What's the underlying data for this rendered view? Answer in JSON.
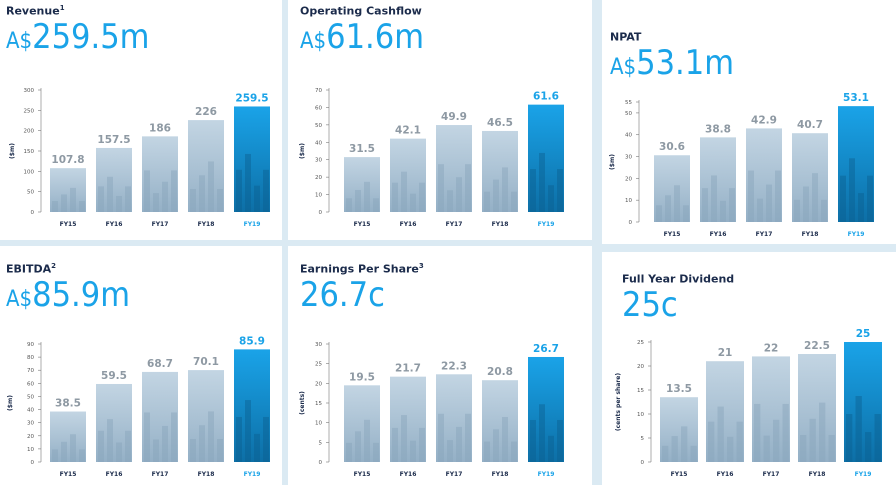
{
  "colors": {
    "accent": "#1aa3e8",
    "bar": "#a9c2d6",
    "bar_dark": "#8eaac1",
    "text_dark": "#1b2b4b",
    "value": "#8e99a3"
  },
  "panels": [
    {
      "id": "revenue",
      "title": "Revenue",
      "sup": "1",
      "prefix": "A$",
      "big": "259.5m"
    },
    {
      "id": "opcash",
      "title": "Operating Cashflow",
      "sup": "",
      "prefix": "A$",
      "big": "61.6m"
    },
    {
      "id": "npat",
      "title": "NPAT",
      "sup": "",
      "prefix": "A$",
      "big": "53.1m"
    },
    {
      "id": "ebitda",
      "title": "EBITDA",
      "sup": "2",
      "prefix": "A$",
      "big": "85.9m"
    },
    {
      "id": "eps",
      "title": "Earnings Per Share",
      "sup": "3",
      "prefix": "",
      "big": "26.7c"
    },
    {
      "id": "dividend",
      "title": "Full Year Dividend",
      "sup": "",
      "prefix": "",
      "big": "25c"
    }
  ],
  "chart_data": [
    {
      "type": "bar",
      "title": "Revenue",
      "ylabel": "($m)",
      "categories": [
        "FY15",
        "FY16",
        "FY17",
        "FY18",
        "FY19"
      ],
      "values": [
        107.8,
        157.5,
        186,
        226,
        259.5
      ],
      "labels": [
        "107.8",
        "157.5",
        "186",
        "226",
        "259.5"
      ],
      "ylim": [
        0,
        300
      ],
      "yticks": [
        "0",
        "50",
        "100",
        "150",
        "200",
        "250",
        "300"
      ]
    },
    {
      "type": "bar",
      "title": "Operating Cashflow",
      "ylabel": "($m)",
      "categories": [
        "FY15",
        "FY16",
        "FY17",
        "FY18",
        "FY19"
      ],
      "values": [
        31.5,
        42.1,
        49.9,
        46.5,
        61.6
      ],
      "labels": [
        "31.5",
        "42.1",
        "49.9",
        "46.5",
        "61.6"
      ],
      "ylim": [
        0,
        70
      ],
      "yticks": [
        "0",
        "10",
        "20",
        "30",
        "40",
        "50",
        "60",
        "70"
      ]
    },
    {
      "type": "bar",
      "title": "NPAT",
      "ylabel": "($m)",
      "categories": [
        "FY15",
        "FY16",
        "FY17",
        "FY18",
        "FY19"
      ],
      "values": [
        30.6,
        38.8,
        42.9,
        40.7,
        53.1
      ],
      "labels": [
        "30.6",
        "38.8",
        "42.9",
        "40.7",
        "53.1"
      ],
      "ylim": [
        0,
        55
      ],
      "yticks": [
        "0",
        "10",
        "20",
        "30",
        "40",
        "50",
        "55"
      ]
    },
    {
      "type": "bar",
      "title": "EBITDA",
      "ylabel": "($m)",
      "categories": [
        "FY15",
        "FY16",
        "FY17",
        "FY18",
        "FY19"
      ],
      "values": [
        38.5,
        59.5,
        68.7,
        70.1,
        85.9
      ],
      "labels": [
        "38.5",
        "59.5",
        "68.7",
        "70.1",
        "85.9"
      ],
      "ylim": [
        0,
        90
      ],
      "yticks": [
        "0",
        "10",
        "20",
        "30",
        "40",
        "50",
        "60",
        "70",
        "80",
        "90"
      ]
    },
    {
      "type": "bar",
      "title": "Earnings Per Share",
      "ylabel": "(cents)",
      "categories": [
        "FY15",
        "FY16",
        "FY17",
        "FY18",
        "FY19"
      ],
      "values": [
        19.5,
        21.7,
        22.3,
        20.8,
        26.7
      ],
      "labels": [
        "19.5",
        "21.7",
        "22.3",
        "20.8",
        "26.7"
      ],
      "ylim": [
        0,
        30
      ],
      "yticks": [
        "0",
        "5",
        "10",
        "15",
        "20",
        "25",
        "30"
      ]
    },
    {
      "type": "bar",
      "title": "Full Year Dividend",
      "ylabel": "(cents per share)",
      "categories": [
        "FY15",
        "FY16",
        "FY17",
        "FY18",
        "FY19"
      ],
      "values": [
        13.5,
        21,
        22,
        22.5,
        25
      ],
      "labels": [
        "13.5",
        "21",
        "22",
        "22.5",
        "25"
      ],
      "ylim": [
        0,
        25
      ],
      "yticks": [
        "0",
        "5",
        "10",
        "15",
        "20",
        "25"
      ]
    }
  ]
}
